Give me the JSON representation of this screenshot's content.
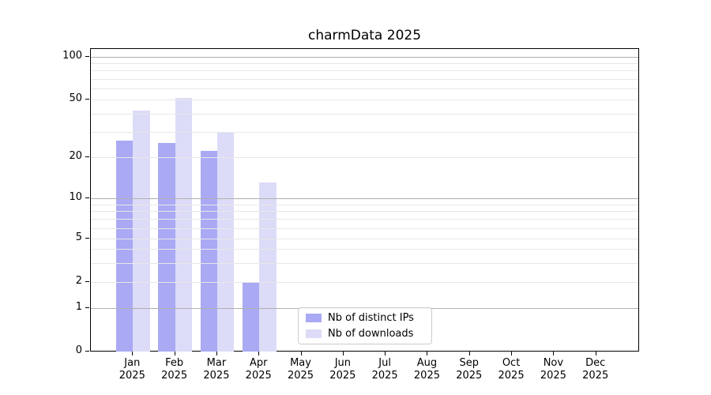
{
  "chart_data": {
    "type": "bar",
    "title": "charmData 2025",
    "categories": [
      "Jan 2025",
      "Feb 2025",
      "Mar 2025",
      "Apr 2025",
      "May 2025",
      "Jun 2025",
      "Jul 2025",
      "Aug 2025",
      "Sep 2025",
      "Oct 2025",
      "Nov 2025",
      "Dec 2025"
    ],
    "month_labels": [
      "Jan",
      "Feb",
      "Mar",
      "Apr",
      "May",
      "Jun",
      "Jul",
      "Aug",
      "Sep",
      "Oct",
      "Nov",
      "Dec"
    ],
    "year_label": "2025",
    "series": [
      {
        "name": "Nb of distinct IPs",
        "color": "#a9a9f4",
        "values": [
          26,
          25,
          22,
          2,
          null,
          null,
          null,
          null,
          null,
          null,
          null,
          null
        ]
      },
      {
        "name": "Nb of downloads",
        "color": "#dcdcf8",
        "values": [
          42,
          51,
          30,
          13,
          null,
          null,
          null,
          null,
          null,
          null,
          null,
          null
        ]
      }
    ],
    "yscale": "symlog",
    "ylim": [
      0,
      113
    ],
    "xlabel": "",
    "ylabel": "",
    "y_tick_values": [
      0,
      1,
      2,
      5,
      10,
      20,
      50,
      100
    ],
    "y_tick_labels": [
      "0",
      "1",
      "2",
      "5",
      "10",
      "20",
      "50",
      "100"
    ],
    "grid_major_values": [
      1,
      10,
      100
    ],
    "grid_minor_values": [
      2,
      3,
      4,
      5,
      6,
      7,
      8,
      9,
      20,
      30,
      40,
      50,
      60,
      70,
      80,
      90
    ],
    "grid": "horizontal major+minor",
    "legend_position": "lower-center"
  },
  "colors": {
    "background": "#ffffff",
    "axis": "#000000",
    "grid_major": "#b0b0b0",
    "grid_minor": "#e7e7e7",
    "legend_border": "#cccccc",
    "series_ips": "#a9a9f4",
    "series_downloads": "#dcdcf8"
  }
}
